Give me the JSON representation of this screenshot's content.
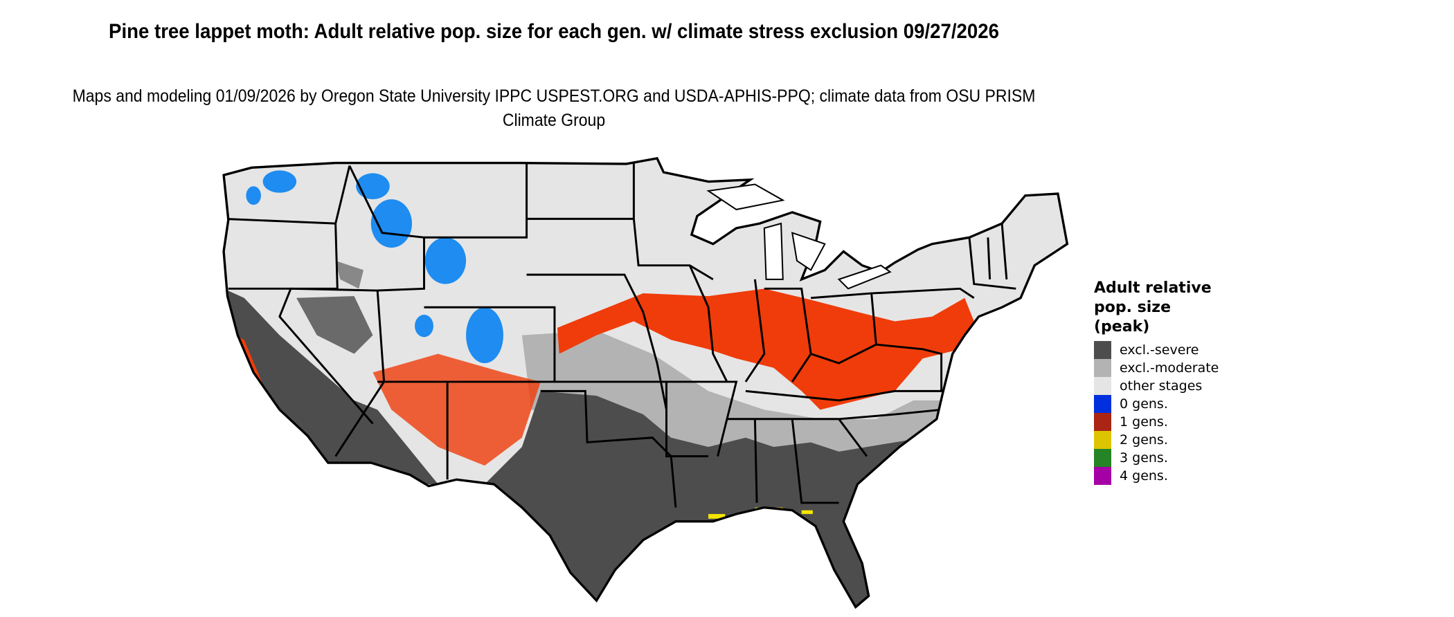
{
  "title": "Pine tree lappet moth: Adult relative pop. size for each gen. w/ climate stress exclusion 09/27/2026",
  "subtitle": "Maps and modeling 01/09/2026 by Oregon State University IPPC USPEST.ORG and USDA-APHIS-PPQ; climate data from OSU PRISM Climate Group",
  "legend": {
    "title": "Adult relative pop. size (peak)",
    "items": [
      {
        "label": "excl.-severe",
        "color": "#4d4d4d"
      },
      {
        "label": "excl.-moderate",
        "color": "#b3b3b3"
      },
      {
        "label": "other stages",
        "color": "#e5e5e5"
      },
      {
        "label": "0 gens.",
        "color": "#0030dd"
      },
      {
        "label": "1 gens.",
        "color": "#aa2514"
      },
      {
        "label": "2 gens.",
        "color": "#dcc500"
      },
      {
        "label": "3 gens.",
        "color": "#258426"
      },
      {
        "label": "4 gens.",
        "color": "#a500a5"
      }
    ]
  },
  "map_colors": {
    "population_peak": "#f03c0a",
    "cold_low_population": "#1e8cf0",
    "state_borders": "#000000"
  }
}
